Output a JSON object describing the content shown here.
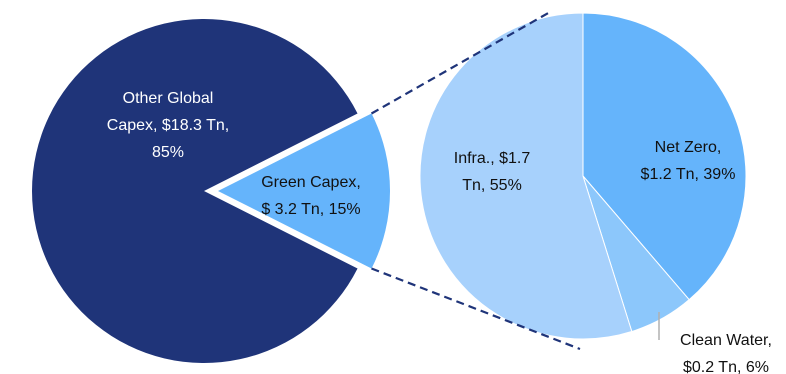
{
  "chart_data": [
    {
      "type": "pie",
      "title": "",
      "slices": [
        {
          "name": "Other Global Capex",
          "value": 18.3,
          "percent": 85,
          "label": [
            "Other Global",
            "Capex, $18.3 Tn,",
            "85%"
          ],
          "color": "#1f3479",
          "text_color": "#ffffff"
        },
        {
          "name": "Green Capex",
          "value": 3.2,
          "percent": 15,
          "exploded": true,
          "label": [
            "Green Capex,",
            "$ 3.2 Tn, 15%"
          ],
          "color": "#65b4fb",
          "text_color": "#111111"
        }
      ]
    },
    {
      "type": "pie",
      "title": "",
      "slices": [
        {
          "name": "Net Zero",
          "value": 1.2,
          "percent": 39,
          "label": [
            "Net Zero,",
            "$1.2 Tn, 39%"
          ],
          "color": "#65b4fb",
          "text_color": "#111111"
        },
        {
          "name": "Clean Water",
          "value": 0.2,
          "percent": 6,
          "label": [
            "Clean Water,",
            "$0.2 Tn, 6%"
          ],
          "color": "#8cc7fb",
          "text_color": "#111111"
        },
        {
          "name": "Infra.",
          "value": 1.7,
          "percent": 55,
          "label": [
            "Infra., $1.7",
            "Tn, 55%"
          ],
          "color": "#a7d1fc",
          "text_color": "#111111"
        }
      ]
    }
  ],
  "colors": {
    "connector": "#1f3479",
    "leader": "#b0b0b0"
  }
}
